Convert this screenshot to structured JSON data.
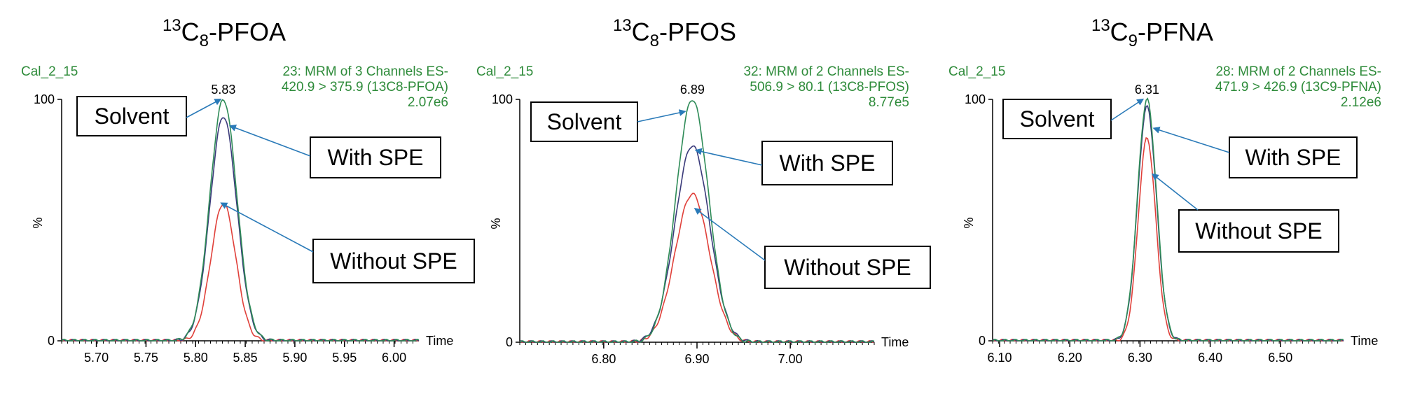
{
  "colors": {
    "solvent": "#2e8b57",
    "with_spe": "#3a3a7a",
    "without_spe": "#e0403a",
    "annotation_green": "#2e8b3a",
    "arrow": "#2a7ab8"
  },
  "chart_data": [
    {
      "type": "line",
      "title": {
        "base": "13",
        "sym": "C",
        "idx": "8",
        "name": "-PFOA"
      },
      "sample": "Cal_2_15",
      "channel_info": [
        "23: MRM  of 3 Channels ES-",
        "420.9 > 375.9 (13C8-PFOA)",
        "2.07e6"
      ],
      "peak_label": "5.83",
      "ylabel": "%",
      "xlabel": "Time",
      "y_ticks": [
        "100",
        "0"
      ],
      "x_ticks": [
        5.7,
        5.75,
        5.8,
        5.85,
        5.9,
        5.95,
        6.0
      ],
      "x_tick_labels": [
        "5.70",
        "5.75",
        "5.80",
        "5.85",
        "5.90",
        "5.95",
        "6.00"
      ],
      "xlim": [
        5.665,
        6.025
      ],
      "ylim": [
        0,
        100
      ],
      "peak_time": 5.828,
      "series": [
        {
          "name": "Solvent",
          "peak": 100,
          "sigma": 0.0135
        },
        {
          "name": "With SPE",
          "peak": 93,
          "sigma": 0.0135
        },
        {
          "name": "Without SPE",
          "peak": 57,
          "sigma": 0.0125
        }
      ],
      "callouts": [
        "Solvent",
        "With SPE",
        "Without SPE"
      ]
    },
    {
      "type": "line",
      "title": {
        "base": "13",
        "sym": "C",
        "idx": "8",
        "name": "-PFOS"
      },
      "sample": "Cal_2_15",
      "channel_info": [
        "32: MRM  of 2 Channels ES-",
        "506.9 > 80.1 (13C8-PFOS)",
        "8.77e5"
      ],
      "peak_label": "6.89",
      "ylabel": "%",
      "xlabel": "Time",
      "y_ticks": [
        "100",
        "%",
        "0"
      ],
      "x_ticks": [
        6.8,
        6.9,
        7.0
      ],
      "x_tick_labels": [
        "6.80",
        "6.90",
        "7.00"
      ],
      "xlim": [
        6.71,
        7.09
      ],
      "ylim": [
        0,
        100
      ],
      "peak_time": 6.895,
      "series": [
        {
          "name": "Solvent",
          "peak": 100,
          "sigma": 0.0175
        },
        {
          "name": "With SPE",
          "peak": 81,
          "sigma": 0.0185
        },
        {
          "name": "Without SPE",
          "peak": 61,
          "sigma": 0.0185
        }
      ],
      "callouts": [
        "Solvent",
        "With SPE",
        "Without SPE"
      ]
    },
    {
      "type": "line",
      "title": {
        "base": "13",
        "sym": "C",
        "idx": "9",
        "name": "-PFNA"
      },
      "sample": "Cal_2_15",
      "channel_info": [
        "28: MRM  of 2 Channels ES-",
        "471.9 > 426.9 (13C9-PFNA)",
        "2.12e6"
      ],
      "peak_label": "6.31",
      "ylabel": "%",
      "xlabel": "Time",
      "y_ticks": [
        "100",
        "0"
      ],
      "x_ticks": [
        6.1,
        6.2,
        6.3,
        6.4,
        6.5
      ],
      "x_tick_labels": [
        "6.10",
        "6.20",
        "6.30",
        "6.40",
        "6.50"
      ],
      "xlim": [
        6.09,
        6.59
      ],
      "ylim": [
        0,
        100
      ],
      "peak_time": 6.31,
      "series": [
        {
          "name": "Solvent",
          "peak": 100,
          "sigma": 0.0135
        },
        {
          "name": "With SPE",
          "peak": 97,
          "sigma": 0.0135
        },
        {
          "name": "Without SPE",
          "peak": 84,
          "sigma": 0.0125
        }
      ],
      "callouts": [
        "Solvent",
        "With SPE",
        "Without SPE"
      ]
    }
  ]
}
